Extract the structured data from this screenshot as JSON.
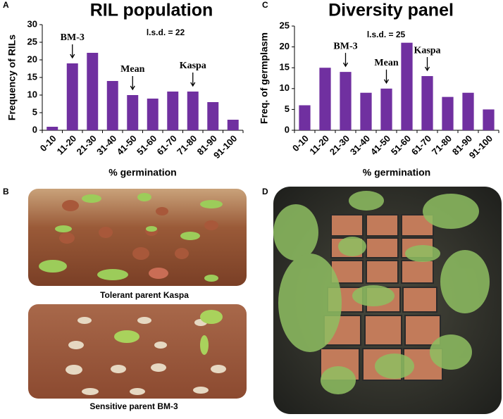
{
  "chart_data": [
    {
      "type": "bar",
      "panel": "A",
      "title": "RIL population",
      "ylabel": "Frequency of RILs",
      "xlabel": "% germination",
      "categories": [
        "0-10",
        "11-20",
        "21-30",
        "31-40",
        "41-50",
        "51-60",
        "61-70",
        "71-80",
        "81-90",
        "91-100"
      ],
      "values": [
        1,
        19,
        22,
        14,
        10,
        9,
        11,
        11,
        8,
        3
      ],
      "color": "#7030a0",
      "ylim": [
        0,
        30
      ],
      "yticks": [
        0,
        5,
        10,
        15,
        20,
        25,
        30
      ],
      "annotations": [
        "l.s.d. = 22",
        "BM-3",
        "Mean",
        "Kaspa"
      ]
    },
    {
      "type": "bar",
      "panel": "C",
      "title": "Diversity panel",
      "ylabel": "Freq. of germplasm",
      "xlabel": "% germination",
      "categories": [
        "0-10",
        "11-20",
        "21-30",
        "31-40",
        "41-50",
        "51-60",
        "61-70",
        "71-80",
        "81-90",
        "91-100"
      ],
      "values": [
        6,
        15,
        14,
        9,
        10,
        21,
        13,
        8,
        9,
        5
      ],
      "color": "#7030a0",
      "ylim": [
        0,
        25
      ],
      "yticks": [
        0,
        5,
        10,
        15,
        20,
        25
      ],
      "annotations": [
        "l.s.d. = 25",
        "BM-3",
        "Mean",
        "Kaspa"
      ]
    }
  ],
  "photos": {
    "panel_b": {
      "label": "B",
      "captions": [
        "Tolerant  parent Kaspa",
        "Sensitive parent  BM-3"
      ]
    },
    "panel_d": {
      "label": "D"
    }
  }
}
